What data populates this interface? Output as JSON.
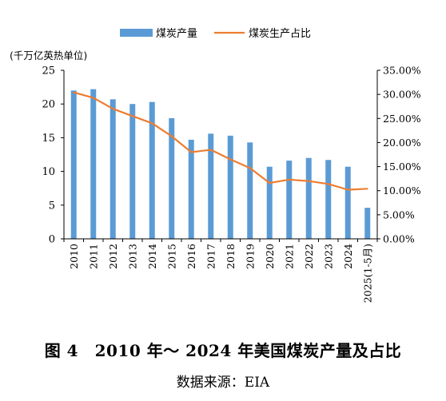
{
  "chart_data": {
    "type": "bar",
    "categories": [
      "2010",
      "2011",
      "2012",
      "2013",
      "2014",
      "2015",
      "2016",
      "2017",
      "2018",
      "2019",
      "2020",
      "2021",
      "2022",
      "2023",
      "2024",
      "2025(1-5月)"
    ],
    "series": [
      {
        "name": "煤炭产量",
        "type": "bar",
        "axis": "left",
        "color": "#5b9bd5",
        "values": [
          22.0,
          22.2,
          20.7,
          20.0,
          20.3,
          17.9,
          14.7,
          15.6,
          15.3,
          14.3,
          10.7,
          11.6,
          12.0,
          11.7,
          10.7,
          4.6
        ]
      },
      {
        "name": "煤炭生产占比",
        "type": "line",
        "axis": "right",
        "color": "#ed7d31",
        "values": [
          30.4,
          29.3,
          27.0,
          25.5,
          24.0,
          21.3,
          18.0,
          18.5,
          16.5,
          14.7,
          11.6,
          12.3,
          12.0,
          11.4,
          10.2,
          10.4
        ]
      }
    ],
    "ylabel": "(千万亿英热单位)",
    "ylim": [
      0,
      25
    ],
    "yticks": [
      "0",
      "5",
      "10",
      "15",
      "20",
      "25"
    ],
    "y2lim": [
      0,
      35
    ],
    "y2ticks": [
      "0.00%",
      "5.00%",
      "10.00%",
      "15.00%",
      "20.00%",
      "25.00%",
      "30.00%",
      "35.00%"
    ],
    "legend_position": "top",
    "grid": false
  },
  "caption": {
    "title": "图 4　2010 年～ 2024 年美国煤炭产量及占比",
    "source": "数据来源：EIA"
  }
}
